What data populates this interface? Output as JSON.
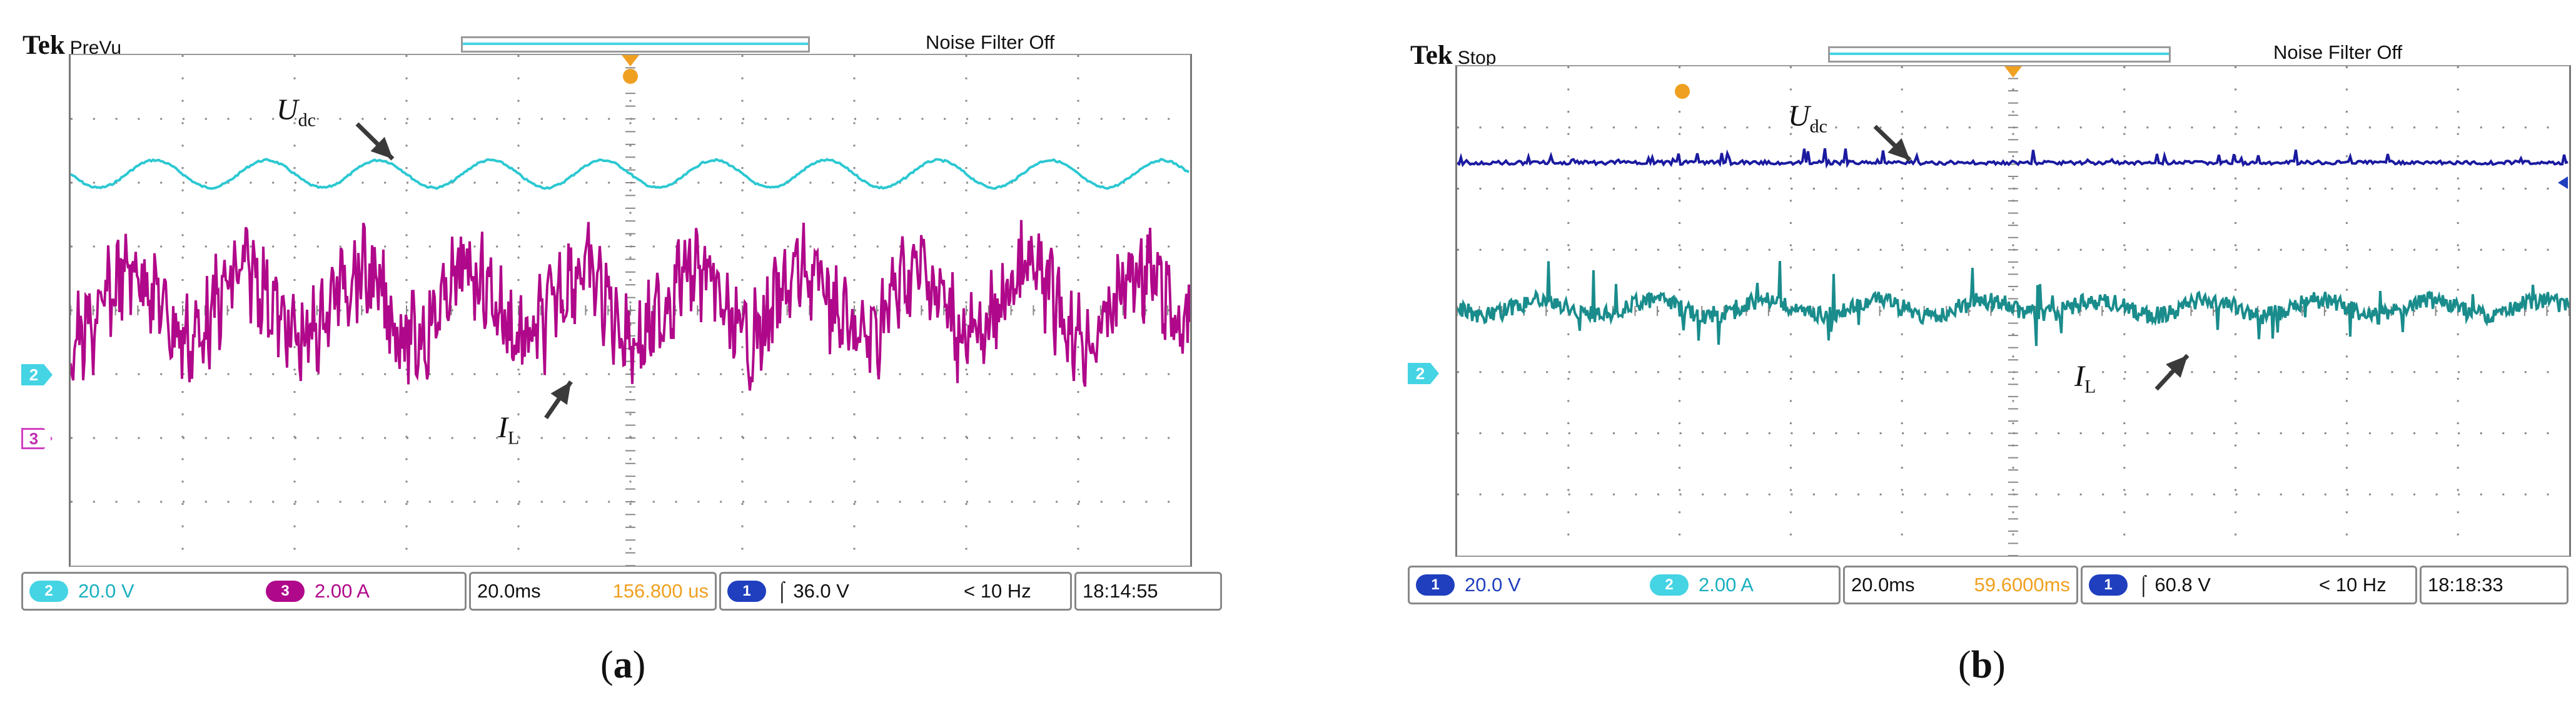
{
  "colors": {
    "a_voltage": "#2cc8d2",
    "a_current": "#b0088a",
    "b_voltage": "#1a1aa0",
    "b_current": "#1a8c8c",
    "trigger": "#f0a020",
    "chip_a_ch2": "#44d4e4",
    "chip_a_ch3": "#b0088a",
    "chip_blue": "#1f3fbf",
    "chip_b_ch2": "#44d4e4"
  },
  "scope_a": {
    "brand": "Tek",
    "status": "PreVu",
    "noise": "Noise Filter Off",
    "markers": {
      "ch2": "2",
      "ch3": "3"
    },
    "chart_data": {
      "type": "line",
      "series": [
        {
          "name": "U_dc",
          "channel": "2",
          "shape": "sinusoidal ripple",
          "period_ms": 20,
          "scale": "20.0 V/div"
        },
        {
          "name": "I_L",
          "channel": "3",
          "shape": "noisy periodic",
          "period_ms": 20,
          "scale": "2.00 A/div"
        }
      ],
      "time_div": "20.0ms",
      "grid": true
    },
    "labels": {
      "udc": "U",
      "udc_sub": "dc",
      "il": "I",
      "il_sub": "L"
    },
    "readout": {
      "ch_a_num": "2",
      "ch_a_val": "20.0 V",
      "ch_b_num": "3",
      "ch_b_val": "2.00 A",
      "timebase": "20.0ms",
      "delay": "156.800 us",
      "trig_num": "1",
      "trig_val": "⌠ 36.0 V",
      "freq": "< 10 Hz",
      "time": "18:14:55"
    },
    "caption": "a"
  },
  "scope_b": {
    "brand": "Tek",
    "status": "Stop",
    "noise": "Noise Filter Off",
    "markers": {
      "ch2": "2"
    },
    "chart_data": {
      "type": "line",
      "series": [
        {
          "name": "U_dc",
          "channel": "1",
          "shape": "flat with small spikes",
          "scale": "20.0 V/div"
        },
        {
          "name": "I_L",
          "channel": "2",
          "shape": "noisy near-flat",
          "scale": "2.00 A/div"
        }
      ],
      "time_div": "20.0ms",
      "grid": true
    },
    "labels": {
      "udc": "U",
      "udc_sub": "dc",
      "il": "I",
      "il_sub": "L"
    },
    "readout": {
      "ch_a_num": "1",
      "ch_a_val": "20.0 V",
      "ch_b_num": "2",
      "ch_b_val": "2.00 A",
      "timebase": "20.0ms",
      "delay": "59.6000ms",
      "trig_num": "1",
      "trig_val": "⌠ 60.8 V",
      "freq": "< 10 Hz",
      "time": "18:18:33"
    },
    "caption": "b"
  }
}
